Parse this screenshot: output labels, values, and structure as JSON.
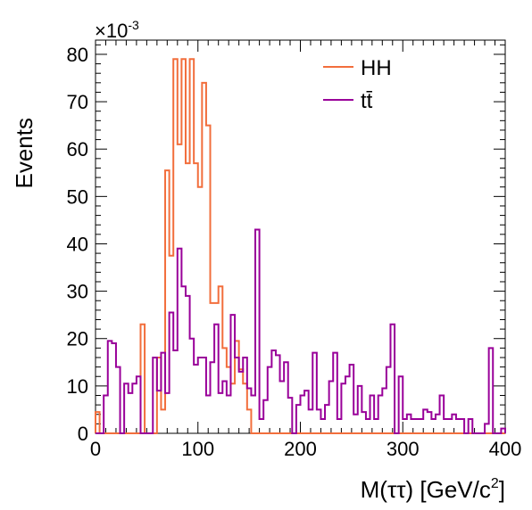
{
  "chart_data": {
    "type": "histogram",
    "xlabel": "M(ττ) [GeV/c",
    "xlabel_sup": "2",
    "xlabel_close": "]",
    "ylabel": "Events",
    "y_multiplier_base": "×10",
    "y_multiplier_exp": "-3",
    "xlim": [
      0,
      400
    ],
    "ylim": [
      0,
      83
    ],
    "x_ticks": [
      0,
      100,
      200,
      300,
      400
    ],
    "y_ticks": [
      0,
      10,
      20,
      30,
      40,
      50,
      60,
      70,
      80
    ],
    "bin_width": 4,
    "grid": false,
    "legend": "top-right",
    "series": [
      {
        "name": "HH",
        "color": "#F26E3C",
        "values": [
          4.5,
          0,
          0,
          0,
          0,
          0,
          0,
          0,
          0,
          0,
          0,
          23,
          0,
          0,
          0,
          16,
          5,
          55.5,
          37.5,
          79,
          61,
          79,
          57,
          79,
          57,
          52,
          74,
          65,
          27.5,
          27.5,
          31,
          18,
          14,
          10.5,
          19.5,
          13.5,
          10.5,
          5,
          0,
          0,
          0,
          0,
          0,
          0,
          0,
          0,
          0,
          0,
          0,
          0,
          0,
          0,
          0,
          0,
          0,
          0,
          0,
          0,
          0,
          0,
          0,
          0,
          0,
          0,
          0,
          0,
          0,
          0,
          0,
          0,
          0,
          0,
          0,
          0,
          0,
          0,
          0,
          0,
          0,
          0,
          0,
          0,
          0,
          0,
          0,
          0,
          0,
          0,
          0,
          0,
          0,
          0,
          0,
          0,
          0,
          0,
          0,
          0,
          0,
          0
        ]
      },
      {
        "name": "tt̄",
        "color": "#990099",
        "values": [
          0,
          0,
          8,
          19.5,
          19,
          14,
          0,
          10.5,
          8.5,
          10.5,
          12,
          0,
          0,
          0,
          16,
          9,
          17,
          8.5,
          25.5,
          17.5,
          39,
          31,
          29,
          20,
          14.5,
          16,
          16,
          8,
          15,
          23,
          8.5,
          11,
          8,
          25,
          16,
          13,
          16,
          9.5,
          8,
          43,
          3,
          7,
          14,
          17.5,
          16.5,
          11,
          15,
          7.5,
          0,
          6,
          8,
          9,
          5,
          17,
          5,
          3,
          6,
          11,
          17,
          3,
          10.5,
          12,
          14.5,
          4,
          10,
          4.5,
          3,
          8,
          3,
          8,
          9.5,
          14,
          23,
          0,
          12,
          3,
          4,
          3,
          3,
          3,
          5,
          4.5,
          3,
          4,
          8,
          3,
          3,
          4,
          3,
          3,
          0,
          3,
          0,
          0,
          0,
          2,
          18,
          0,
          0,
          1
        ]
      }
    ]
  }
}
